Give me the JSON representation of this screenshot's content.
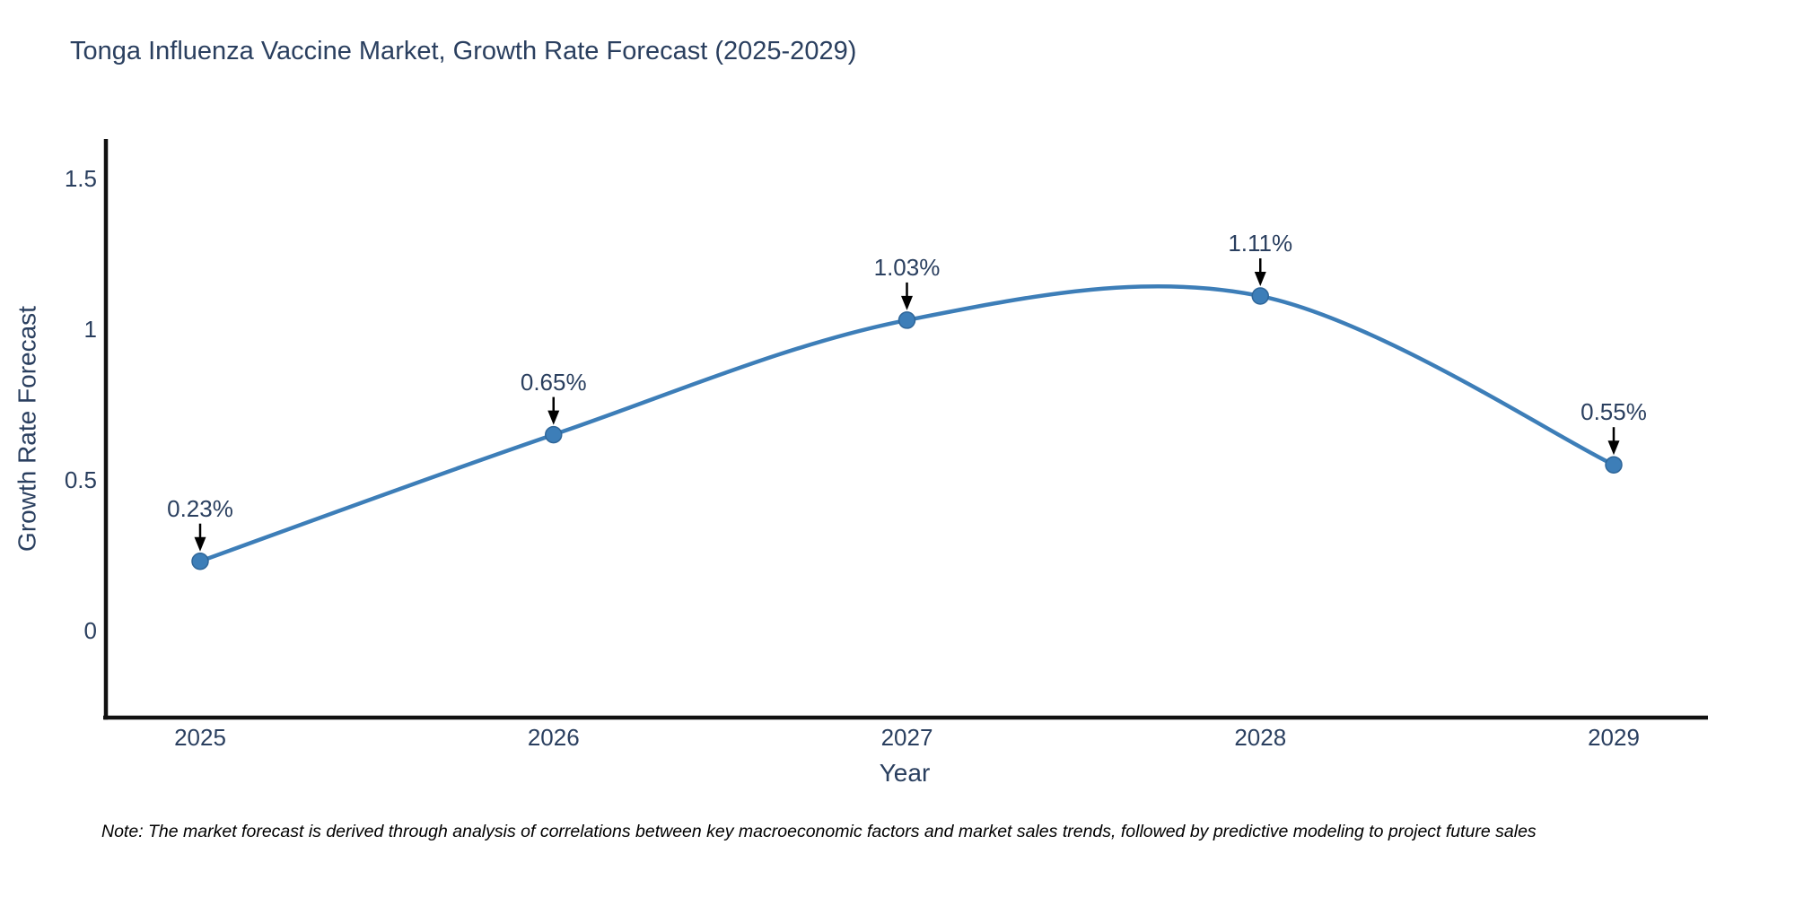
{
  "note": "Note: The market forecast is derived through analysis of correlations between key macroeconomic factors and market sales trends, followed by predictive modeling to project future sales",
  "chart_data": {
    "type": "line",
    "title": "Tonga Influenza Vaccine Market, Growth Rate Forecast (2025-2029)",
    "xlabel": "Year",
    "ylabel": "Growth Rate Forecast",
    "categories": [
      "2025",
      "2026",
      "2027",
      "2028",
      "2029"
    ],
    "values": [
      0.23,
      0.65,
      1.03,
      1.11,
      0.55
    ],
    "annotations": [
      "0.23%",
      "0.65%",
      "1.03%",
      "1.11%",
      "0.55%"
    ],
    "ytick_labels": [
      "0",
      "0.5",
      "1",
      "1.5"
    ],
    "yticks": [
      0,
      0.5,
      1,
      1.5
    ],
    "ylim": [
      -0.29,
      1.63
    ],
    "line_shape": "spline",
    "grid": false,
    "legend": "none",
    "colors": {
      "line": "#3d7eb8",
      "marker": "#3d7eb8",
      "marker_edge": "#2f6699",
      "axis": "#111111",
      "text": "#2a3f5f",
      "arrow": "#000000"
    }
  }
}
